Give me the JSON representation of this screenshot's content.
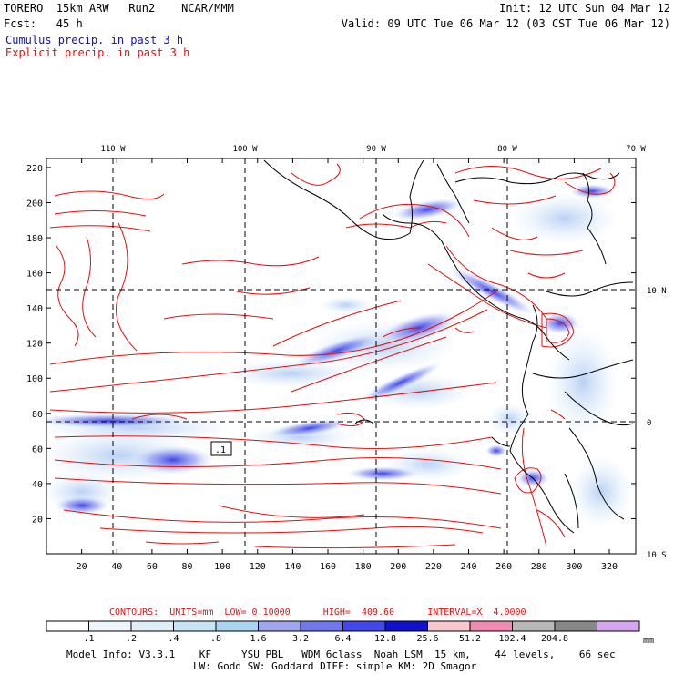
{
  "header": {
    "left_line1": "TORERO  15km ARW   Run2    NCAR/MMM",
    "left_line2": "Fcst:   45 h",
    "right_line1": "Init: 12 UTC Sun 04 Mar 12",
    "right_line2": "Valid: 09 UTC Tue 06 Mar 12 (03 CST Tue 06 Mar 12)",
    "cumulus_label": "Cumulus precip. in past 3 h",
    "explicit_label": "Explicit precip. in past 3 h"
  },
  "map": {
    "lon_labels": [
      "110 W",
      "100 W",
      "90 W",
      "80 W",
      "70 W"
    ],
    "lat_labels": [
      "10 N",
      "0",
      "10 S"
    ],
    "y_ticks": [
      "220",
      "200",
      "180",
      "160",
      "140",
      "120",
      "100",
      "80",
      "60",
      "40",
      "20"
    ],
    "x_ticks": [
      "20",
      "40",
      "60",
      "80",
      "100",
      "120",
      "140",
      "160",
      "180",
      "200",
      "220",
      "240",
      "260",
      "280",
      "300",
      "320"
    ],
    "contour_mark": ".1",
    "colors": {
      "coast": "#000000",
      "explicit": "#e01010",
      "grid": "#000000"
    }
  },
  "footer": {
    "contours_line": "CONTOURS:  UNITS=mm  LOW= 0.10000      HIGH=  409.60      INTERVAL=X  4.0000",
    "colorbar": {
      "labels": [
        ".1",
        ".2",
        ".4",
        ".8",
        "1.6",
        "3.2",
        "6.4",
        "12.8",
        "25.6",
        "51.2",
        "102.4",
        "204.8"
      ],
      "unit": "mm",
      "colors": [
        "#ffffff",
        "#eef6fb",
        "#ddeef6",
        "#c6e4f6",
        "#a9d4f2",
        "#a0a6ee",
        "#7078ee",
        "#4048ee",
        "#1010d0",
        "#f8c8cc",
        "#f08ab0",
        "#b8b8b8",
        "#888888",
        "#d6a6f2"
      ]
    },
    "model_info_1": "Model Info: V3.3.1    KF     YSU PBL   WDM 6class  Noah LSM  15 km,    44 levels,    66 sec",
    "model_info_2": "LW: Godd SW: Goddard DIFF: simple KM: 2D Smagor"
  }
}
